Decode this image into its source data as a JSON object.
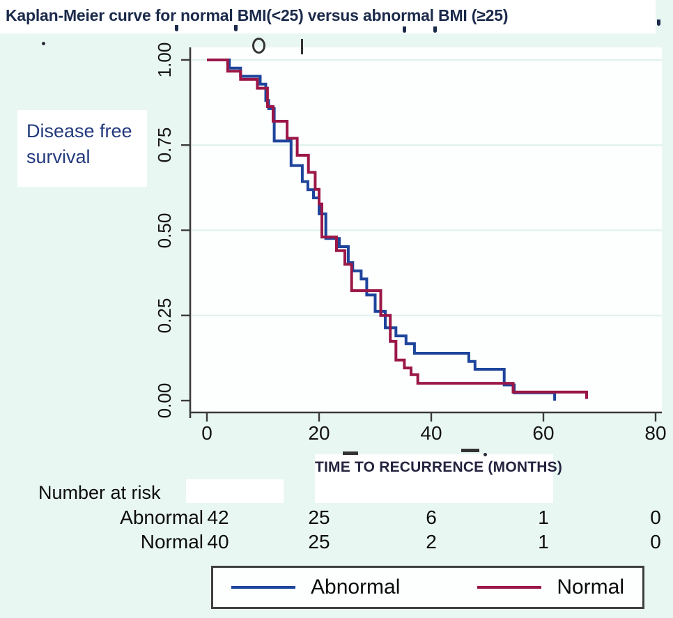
{
  "title": "Kaplan-Meier curve for normal BMI(<25) versus abnormal BMI (≥25)",
  "side_label": {
    "line1": "Disease free",
    "line2": "survival"
  },
  "chart_data": {
    "type": "line",
    "subtype": "kaplan-meier-step",
    "title": "Kaplan-Meier curve for normal BMI(<25) versus abnormal BMI (≥25)",
    "xlabel": "TIME TO RECURRENCE (MONTHS)",
    "ylabel": "Disease free survival",
    "xlim": [
      0,
      84
    ],
    "ylim": [
      0,
      1
    ],
    "xticks": [
      0,
      20,
      40,
      60,
      80
    ],
    "ytick_labels": [
      "0.00",
      "0.25",
      "0.50",
      "0.75",
      "1.00"
    ],
    "ytick_values": [
      0,
      0.25,
      0.5,
      0.75,
      1.0
    ],
    "grid": "horizontal",
    "legend_position": "bottom",
    "series": [
      {
        "name": "Abnormal",
        "color": "#1e459c",
        "points": [
          [
            0,
            1.0
          ],
          [
            4,
            0.976
          ],
          [
            6,
            0.952
          ],
          [
            9.5,
            0.929
          ],
          [
            10.5,
            0.881
          ],
          [
            11,
            0.857
          ],
          [
            12,
            0.762
          ],
          [
            15,
            0.69
          ],
          [
            17,
            0.643
          ],
          [
            18,
            0.619
          ],
          [
            19,
            0.595
          ],
          [
            20,
            0.548
          ],
          [
            21.2,
            0.476
          ],
          [
            23.6,
            0.452
          ],
          [
            25.2,
            0.405
          ],
          [
            26,
            0.381
          ],
          [
            27.5,
            0.357
          ],
          [
            28.5,
            0.31
          ],
          [
            30,
            0.262
          ],
          [
            31.8,
            0.214
          ],
          [
            33.7,
            0.19
          ],
          [
            35.5,
            0.167
          ],
          [
            37,
            0.139
          ],
          [
            46.7,
            0.115
          ],
          [
            47.8,
            0.092
          ],
          [
            53,
            0.046
          ],
          [
            54.8,
            0.023
          ],
          [
            62,
            0.0
          ]
        ]
      },
      {
        "name": "Normal",
        "color": "#9b1747",
        "points": [
          [
            0,
            1.0
          ],
          [
            3.7,
            0.967
          ],
          [
            6,
            0.943
          ],
          [
            9,
            0.917
          ],
          [
            10.8,
            0.863
          ],
          [
            11.8,
            0.82
          ],
          [
            14.3,
            0.77
          ],
          [
            16.1,
            0.72
          ],
          [
            18.1,
            0.67
          ],
          [
            19.3,
            0.62
          ],
          [
            20,
            0.577
          ],
          [
            20.5,
            0.48
          ],
          [
            23.1,
            0.44
          ],
          [
            24.6,
            0.4
          ],
          [
            25.8,
            0.323
          ],
          [
            31,
            0.25
          ],
          [
            32.7,
            0.174
          ],
          [
            33.7,
            0.119
          ],
          [
            35.2,
            0.096
          ],
          [
            36.4,
            0.076
          ],
          [
            37.6,
            0.051
          ],
          [
            54.6,
            0.025
          ],
          [
            67.7,
            0.005
          ]
        ]
      }
    ]
  },
  "risk_table": {
    "header": "Number at risk",
    "time_points": [
      0,
      20,
      40,
      60,
      80
    ],
    "rows": [
      {
        "label": "Abnormal",
        "counts": [
          "42",
          "25",
          "6",
          "1",
          "0"
        ]
      },
      {
        "label": "Normal",
        "counts": [
          "40",
          "25",
          "2",
          "1",
          "0"
        ]
      }
    ]
  },
  "legend": {
    "entries": [
      {
        "label": "Abnormal",
        "color": "#1e459c"
      },
      {
        "label": "Normal",
        "color": "#9b1747"
      }
    ]
  },
  "colors": {
    "background": "#e9f7f3",
    "plot_background": "#fdfefe",
    "gridline": "#dcf2ea",
    "axis": "#3a3a3a",
    "abnormal_curve": "#1e459c",
    "normal_curve": "#9b1747",
    "title_text": "#1b2a4a",
    "side_label_text": "#233a7d"
  }
}
